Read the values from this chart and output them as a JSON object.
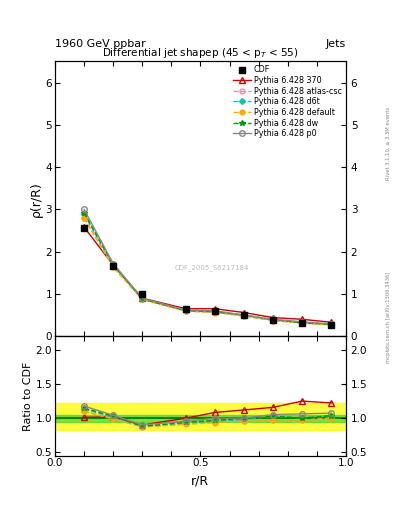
{
  "title_main": "1960 GeV ppbar",
  "title_right": "Jets",
  "plot_title": "Differential jet shapep (45 < p$_T$ < 55)",
  "xlabel": "r/R",
  "ylabel_main": "ρ(r/R)",
  "ylabel_ratio": "Ratio to CDF",
  "watermark": "CDF_2005_S6217184",
  "rivet_text": "Rivet 3.1.10, ≥ 3.3M events",
  "arxiv_text": "mcplots.cern.ch [arXiv:1306.3436]",
  "x_vals": [
    0.1,
    0.2,
    0.3,
    0.45,
    0.55,
    0.65,
    0.75,
    0.85,
    0.95
  ],
  "cdf_y": [
    2.55,
    1.65,
    1.0,
    0.65,
    0.6,
    0.5,
    0.38,
    0.32,
    0.27
  ],
  "cdf_yerr": [
    0.08,
    0.06,
    0.04,
    0.03,
    0.03,
    0.02,
    0.02,
    0.015,
    0.015
  ],
  "pythia_370_y": [
    2.58,
    1.68,
    0.9,
    0.65,
    0.65,
    0.56,
    0.44,
    0.4,
    0.33
  ],
  "pythia_atlas_cac_y": [
    2.8,
    1.65,
    0.87,
    0.6,
    0.57,
    0.48,
    0.37,
    0.31,
    0.27
  ],
  "pythia_d6t_y": [
    2.88,
    1.68,
    0.88,
    0.6,
    0.57,
    0.49,
    0.39,
    0.32,
    0.28
  ],
  "pythia_default_y": [
    2.8,
    1.63,
    0.87,
    0.59,
    0.56,
    0.48,
    0.37,
    0.31,
    0.27
  ],
  "pythia_dw_y": [
    2.92,
    1.7,
    0.88,
    0.61,
    0.58,
    0.5,
    0.39,
    0.32,
    0.28
  ],
  "pythia_p0_y": [
    3.0,
    1.72,
    0.9,
    0.62,
    0.6,
    0.5,
    0.4,
    0.34,
    0.29
  ],
  "color_370": "#cc0000",
  "color_atlas_cac": "#ff88aa",
  "color_d6t": "#00ccaa",
  "color_default": "#ffaa00",
  "color_dw": "#009900",
  "color_p0": "#888888",
  "color_cdf": "#000000",
  "ylim_main": [
    0.0,
    6.5
  ],
  "ylim_ratio": [
    0.45,
    2.2
  ],
  "band_green_lo": 0.95,
  "band_green_hi": 1.05,
  "band_yellow_lo": 0.82,
  "band_yellow_hi": 1.22
}
